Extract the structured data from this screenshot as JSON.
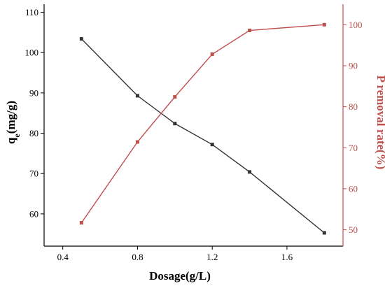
{
  "chart_data": {
    "type": "line",
    "xlabel": "Dosage(g/L)",
    "ylabel_left": {
      "main": "q",
      "sub": "e",
      "rest": "(mg/g)"
    },
    "ylabel_right": "P removal rate(%)",
    "x": [
      0.5,
      0.8,
      1.0,
      1.2,
      1.4,
      1.8
    ],
    "xlim": [
      0.3,
      1.9
    ],
    "xticks": [
      "0.4",
      "0.8",
      "1.2",
      "1.6"
    ],
    "ylim_left": [
      52,
      112
    ],
    "yticks_left": [
      "60",
      "70",
      "80",
      "90",
      "100",
      "110"
    ],
    "ylim_right": [
      46,
      105
    ],
    "yticks_right": [
      "50",
      "60",
      "70",
      "80",
      "90",
      "100"
    ],
    "series": [
      {
        "axis": "left",
        "color": "#333333",
        "values": [
          103.4,
          89.3,
          82.4,
          77.2,
          70.4,
          55.3
        ]
      },
      {
        "axis": "right",
        "color": "#c0504d",
        "values": [
          51.7,
          71.4,
          82.4,
          92.8,
          98.6,
          100.0
        ]
      }
    ],
    "left_axis_color": "#000000",
    "right_axis_color": "#c0504d",
    "grid": false
  }
}
